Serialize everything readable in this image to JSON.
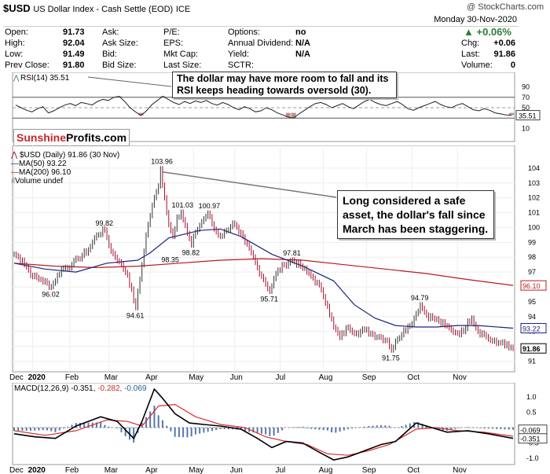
{
  "header": {
    "symbol": "$USD",
    "name": "US Dollar Index - Cash Settle (EOD)",
    "exchange": "ICE",
    "copyright": "@ StockCharts.com",
    "date": "Monday  30-Nov-2020",
    "change_pct": "+0.06%",
    "col1": [
      [
        "Open:",
        "91.73"
      ],
      [
        "High:",
        "92.04"
      ],
      [
        "Low:",
        "91.49"
      ],
      [
        "Prev Close:",
        "91.80"
      ]
    ],
    "col2": [
      "Ask:",
      "Ask Size:",
      "Bid:",
      "Bid Size:"
    ],
    "col3": [
      "P/E:",
      "EPS:",
      "Mkt Cap:",
      "Last Size:"
    ],
    "col4": [
      [
        "Options:",
        "no"
      ],
      [
        "Annual Dividend:",
        "N/A"
      ],
      [
        "Yield:",
        "N/A"
      ],
      [
        "SCTR:",
        ""
      ]
    ],
    "col5": [
      [
        "Chg:",
        "+0.06"
      ],
      [
        "Last:",
        "91.86"
      ],
      [
        "Volume:",
        "0"
      ]
    ]
  },
  "colors": {
    "up": "#2e7d32",
    "down": "#c62828",
    "price": "#a0102e",
    "ma50": "#1a237e",
    "ma200": "#b71c1c",
    "macd_hist": "#5577aa"
  },
  "rsi": {
    "label": "RSI(14) 35.51",
    "current": "35.51",
    "levels": [
      70,
      30
    ],
    "axis_labels": [
      "90",
      "70",
      "50",
      "30",
      "10"
    ],
    "note": "The dollar may have more room to fall and its RSI keeps heading towards oversold (30).",
    "values": [
      55,
      50,
      45,
      42,
      48,
      52,
      40,
      44,
      50,
      55,
      58,
      54,
      60,
      58,
      55,
      62,
      66,
      64,
      70,
      72,
      62,
      50,
      42,
      35,
      44,
      56,
      64,
      72,
      66,
      60,
      56,
      62,
      58,
      63,
      60,
      64,
      58,
      55,
      60,
      56,
      50,
      46,
      52,
      48,
      42,
      44,
      50,
      46,
      40,
      36,
      32,
      30,
      38,
      45,
      52,
      58,
      60,
      56,
      50,
      54,
      58,
      52,
      48,
      55,
      62,
      66,
      60,
      56,
      54,
      58,
      62,
      56,
      48,
      45,
      50,
      54,
      58,
      62,
      56,
      52,
      50,
      55,
      58,
      52,
      46,
      44,
      48,
      45,
      40,
      38,
      36,
      35.51
    ]
  },
  "logo": {
    "part1": "Sunshine",
    "part2": "Profits.com"
  },
  "price_legend": {
    "series": "$USD (Daily) 91.86 (30 Nov)",
    "ma50": "MA(50) 93.22",
    "ma200": "MA(200) 96.10",
    "volume": "Volume undef"
  },
  "price_note": "Long considered a safe asset, the dollar's fall since March has been staggering.",
  "chart_data": [
    {
      "type": "line",
      "title": "$USD (Daily)",
      "ylim": [
        90.6,
        105.0
      ],
      "y_ticks": [
        91,
        92,
        93,
        94,
        95,
        96,
        97,
        98,
        99,
        100,
        101,
        102,
        103,
        104
      ],
      "x_month_labels": [
        "Dec",
        "2020",
        "Feb",
        "Mar",
        "Apr",
        "May",
        "Jun",
        "Jul",
        "Aug",
        "Sep",
        "Oct",
        "Nov"
      ],
      "x_month_index": [
        0,
        9,
        27,
        46,
        66,
        87,
        107,
        129,
        150,
        171,
        193,
        215
      ],
      "x_count": 243,
      "anchors": [
        [
          0,
          98.2
        ],
        [
          4,
          97.8
        ],
        [
          9,
          96.7
        ],
        [
          13,
          96.5
        ],
        [
          18,
          96.02
        ],
        [
          23,
          97.2
        ],
        [
          28,
          97.5
        ],
        [
          31,
          97.9
        ],
        [
          36,
          98.5
        ],
        [
          40,
          99.5
        ],
        [
          44,
          99.82
        ],
        [
          47,
          98.4
        ],
        [
          51,
          97.7
        ],
        [
          55,
          96.8
        ],
        [
          59,
          94.61
        ],
        [
          62,
          97.5
        ],
        [
          64,
          99.5
        ],
        [
          67,
          101.5
        ],
        [
          70,
          102.8
        ],
        [
          71,
          103.96
        ],
        [
          73,
          102.0
        ],
        [
          75,
          100.2
        ],
        [
          77,
          99.4
        ],
        [
          79,
          100.7
        ],
        [
          81,
          101.03
        ],
        [
          84,
          99.6
        ],
        [
          86,
          98.82
        ],
        [
          88,
          99.7
        ],
        [
          91,
          100.4
        ],
        [
          94,
          100.97
        ],
        [
          97,
          99.9
        ],
        [
          100,
          99.4
        ],
        [
          103,
          99.8
        ],
        [
          106,
          100.3
        ],
        [
          109,
          99.7
        ],
        [
          112,
          99.0
        ],
        [
          115,
          98.3
        ],
        [
          118,
          97.3
        ],
        [
          121,
          96.5
        ],
        [
          124,
          95.71
        ],
        [
          127,
          96.9
        ],
        [
          131,
          97.5
        ],
        [
          135,
          97.81
        ],
        [
          139,
          97.4
        ],
        [
          142,
          97.0
        ],
        [
          145,
          96.6
        ],
        [
          149,
          95.8
        ],
        [
          152,
          94.7
        ],
        [
          155,
          93.3
        ],
        [
          158,
          92.6
        ],
        [
          162,
          93.3
        ],
        [
          166,
          92.9
        ],
        [
          170,
          93.1
        ],
        [
          174,
          92.8
        ],
        [
          178,
          92.6
        ],
        [
          181,
          92.4
        ],
        [
          183,
          91.75
        ],
        [
          186,
          92.5
        ],
        [
          189,
          93.1
        ],
        [
          192,
          93.4
        ],
        [
          195,
          94.2
        ],
        [
          197,
          94.79
        ],
        [
          200,
          94.1
        ],
        [
          203,
          93.9
        ],
        [
          206,
          93.7
        ],
        [
          209,
          93.4
        ],
        [
          212,
          93.1
        ],
        [
          215,
          92.9
        ],
        [
          218,
          93.0
        ],
        [
          220,
          93.7
        ],
        [
          222,
          93.9
        ],
        [
          225,
          93.0
        ],
        [
          228,
          92.8
        ],
        [
          231,
          92.4
        ],
        [
          234,
          92.2
        ],
        [
          237,
          92.3
        ],
        [
          240,
          91.9
        ],
        [
          242,
          91.86
        ]
      ],
      "peak_labels": [
        [
          "96.02",
          18,
          96.02,
          "below"
        ],
        [
          "99.82",
          44,
          99.82,
          "above"
        ],
        [
          "94.61",
          59,
          94.61,
          "below"
        ],
        [
          "103.96",
          71,
          103.96,
          "above"
        ],
        [
          "101.03",
          81,
          101.03,
          "above"
        ],
        [
          "98.35",
          76,
          98.35,
          "below"
        ],
        [
          "98.82",
          86,
          98.82,
          "below"
        ],
        [
          "100.97",
          94,
          100.97,
          "above"
        ],
        [
          "95.71",
          124,
          95.71,
          "below"
        ],
        [
          "97.81",
          135,
          97.81,
          "above"
        ],
        [
          "91.75",
          183,
          91.75,
          "below"
        ],
        [
          "94.79",
          197,
          94.79,
          "above"
        ]
      ],
      "ma50": [
        [
          0,
          97.6
        ],
        [
          15,
          97.2
        ],
        [
          30,
          97.0
        ],
        [
          45,
          97.6
        ],
        [
          60,
          97.8
        ],
        [
          66,
          98.3
        ],
        [
          75,
          99.3
        ],
        [
          90,
          99.8
        ],
        [
          100,
          99.9
        ],
        [
          110,
          99.4
        ],
        [
          125,
          98.2
        ],
        [
          140,
          97.4
        ],
        [
          155,
          96.4
        ],
        [
          165,
          94.8
        ],
        [
          175,
          93.9
        ],
        [
          185,
          93.4
        ],
        [
          195,
          93.3
        ],
        [
          205,
          93.3
        ],
        [
          215,
          93.4
        ],
        [
          225,
          93.4
        ],
        [
          242,
          93.22
        ]
      ],
      "ma200": [
        [
          0,
          97.6
        ],
        [
          20,
          97.4
        ],
        [
          40,
          97.3
        ],
        [
          60,
          97.4
        ],
        [
          80,
          97.6
        ],
        [
          100,
          97.8
        ],
        [
          120,
          97.9
        ],
        [
          140,
          97.8
        ],
        [
          160,
          97.5
        ],
        [
          180,
          97.2
        ],
        [
          200,
          96.9
        ],
        [
          220,
          96.5
        ],
        [
          242,
          96.1
        ]
      ],
      "price_tags": [
        [
          "93.22",
          93.22,
          "#1a237e"
        ],
        [
          "96.10",
          96.1,
          "#b71c1c"
        ],
        [
          "91.86",
          91.86,
          "#000000"
        ]
      ]
    },
    {
      "type": "line",
      "title": "MACD(12,26,9)",
      "ylim": [
        -1.2,
        1.3
      ],
      "y_ticks": [
        1.0,
        0.5,
        -0.5,
        -1.0
      ],
      "macd": [
        [
          0,
          -0.2
        ],
        [
          10,
          -0.3
        ],
        [
          20,
          -0.35
        ],
        [
          30,
          0.05
        ],
        [
          42,
          0.35
        ],
        [
          50,
          0.2
        ],
        [
          58,
          -0.35
        ],
        [
          62,
          0.2
        ],
        [
          68,
          1.25
        ],
        [
          72,
          0.95
        ],
        [
          78,
          0.45
        ],
        [
          85,
          0.15
        ],
        [
          92,
          0.1
        ],
        [
          100,
          0.05
        ],
        [
          110,
          -0.05
        ],
        [
          118,
          -0.35
        ],
        [
          125,
          -0.65
        ],
        [
          132,
          -0.45
        ],
        [
          140,
          -0.5
        ],
        [
          148,
          -0.8
        ],
        [
          155,
          -1.05
        ],
        [
          162,
          -0.95
        ],
        [
          170,
          -0.75
        ],
        [
          178,
          -0.55
        ],
        [
          185,
          -0.45
        ],
        [
          195,
          0.15
        ],
        [
          200,
          0.05
        ],
        [
          210,
          -0.15
        ],
        [
          220,
          -0.1
        ],
        [
          230,
          -0.2
        ],
        [
          242,
          -0.351
        ]
      ],
      "signal": [
        [
          0,
          -0.1
        ],
        [
          15,
          -0.25
        ],
        [
          30,
          -0.1
        ],
        [
          45,
          0.25
        ],
        [
          55,
          0.2
        ],
        [
          62,
          0.05
        ],
        [
          70,
          0.7
        ],
        [
          78,
          0.75
        ],
        [
          88,
          0.35
        ],
        [
          100,
          0.1
        ],
        [
          112,
          0.0
        ],
        [
          122,
          -0.3
        ],
        [
          132,
          -0.45
        ],
        [
          142,
          -0.55
        ],
        [
          152,
          -0.85
        ],
        [
          162,
          -0.9
        ],
        [
          172,
          -0.75
        ],
        [
          182,
          -0.55
        ],
        [
          195,
          -0.05
        ],
        [
          205,
          0.0
        ],
        [
          215,
          -0.1
        ],
        [
          228,
          -0.15
        ],
        [
          242,
          -0.282
        ]
      ],
      "histogram": -0.069,
      "label_parts": [
        "MACD(12,26,9) -0.351,",
        "-0.282,",
        "-0.069"
      ],
      "tags": [
        [
          "-0.069",
          -0.069
        ],
        [
          "-0.351",
          -0.351
        ]
      ]
    }
  ]
}
